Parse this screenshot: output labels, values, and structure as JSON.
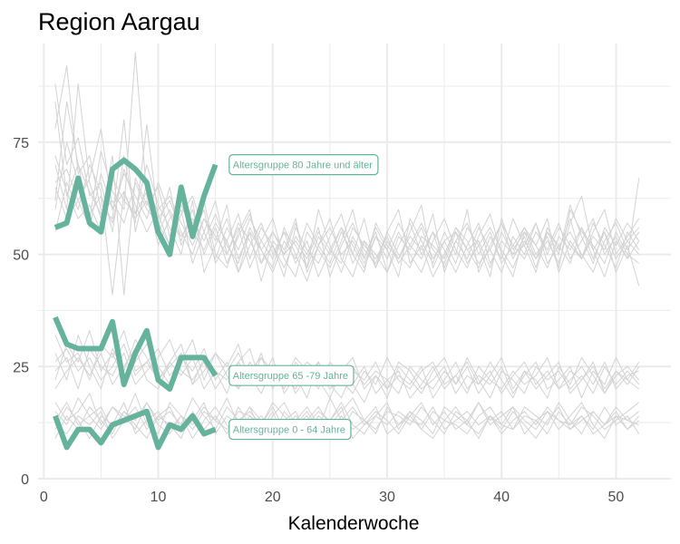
{
  "chart_data": {
    "type": "line",
    "title": "Region Aargau",
    "xlabel": "Kalenderwoche",
    "ylabel": "",
    "xlim": [
      -0.5,
      54.8
    ],
    "ylim": [
      0,
      97
    ],
    "x_ticks": [
      0,
      10,
      20,
      30,
      40,
      50
    ],
    "y_ticks": [
      0,
      25,
      50,
      75
    ],
    "grid": true,
    "colors": {
      "highlight": "#66b39d",
      "background_lines": "#d3d3d3",
      "grid": "#ebebeb"
    },
    "highlighted_series": [
      {
        "name": "Altersgruppe 80 Jahre und älter",
        "x": [
          1,
          2,
          3,
          4,
          5,
          6,
          7,
          8,
          9,
          10,
          11,
          12,
          13,
          14,
          15
        ],
        "values": [
          56,
          57,
          67,
          57,
          55,
          69,
          71,
          69,
          66,
          55,
          50,
          65,
          54,
          63,
          70
        ]
      },
      {
        "name": "Altersgruppe 65 -79 Jahre",
        "x": [
          1,
          2,
          3,
          4,
          5,
          6,
          7,
          8,
          9,
          10,
          11,
          12,
          13,
          14,
          15
        ],
        "values": [
          36,
          30,
          29,
          29,
          29,
          35,
          21,
          28,
          33,
          22,
          20,
          27,
          27,
          27,
          23
        ]
      },
      {
        "name": "Altersgruppe 0 - 64 Jahre",
        "x": [
          1,
          2,
          3,
          4,
          5,
          6,
          7,
          8,
          9,
          10,
          11,
          12,
          13,
          14,
          15
        ],
        "values": [
          14,
          7,
          11,
          11,
          8,
          12,
          13,
          14,
          15,
          7,
          12,
          11,
          14,
          10,
          11
        ]
      }
    ],
    "background_series": [
      {
        "x_start": 1,
        "values": [
          78,
          92,
          68,
          72,
          60,
          58,
          80,
          55,
          66,
          59,
          52,
          63,
          54,
          60,
          48,
          53,
          46,
          55,
          51,
          47,
          56,
          50,
          44,
          52,
          58,
          49,
          45,
          53,
          47,
          55,
          60,
          48,
          52,
          45,
          50,
          56,
          51,
          47,
          54,
          49,
          58,
          52,
          46,
          55,
          50,
          61,
          54,
          48,
          56,
          52,
          57,
          53
        ]
      },
      {
        "x_start": 1,
        "values": [
          88,
          70,
          76,
          63,
          66,
          55,
          72,
          59,
          70,
          61,
          56,
          50,
          62,
          46,
          52,
          58,
          49,
          55,
          44,
          53,
          50,
          57,
          47,
          60,
          52,
          46,
          54,
          49,
          56,
          51,
          45,
          58,
          53,
          48,
          55,
          50,
          60,
          46,
          52,
          57,
          49,
          54,
          47,
          56,
          51,
          58,
          49,
          55,
          60,
          50,
          54,
          58
        ]
      },
      {
        "x_start": 1,
        "values": [
          62,
          84,
          70,
          58,
          73,
          64,
          60,
          95,
          63,
          56,
          65,
          52,
          57,
          62,
          50,
          47,
          55,
          60,
          48,
          52,
          45,
          56,
          51,
          48,
          54,
          59,
          50,
          46,
          57,
          52,
          49,
          55,
          61,
          47,
          53,
          48,
          56,
          52,
          45,
          58,
          51,
          55,
          49,
          53,
          48,
          57,
          63,
          51,
          55,
          49,
          53,
          50
        ]
      },
      {
        "x_start": 1,
        "values": [
          70,
          60,
          88,
          66,
          58,
          72,
          41,
          67,
          61,
          65,
          54,
          60,
          48,
          55,
          62,
          50,
          56,
          47,
          53,
          58,
          49,
          45,
          55,
          51,
          47,
          53,
          60,
          49,
          55,
          46,
          52,
          57,
          50,
          55,
          47,
          53,
          49,
          56,
          51,
          46,
          54,
          50,
          57,
          48,
          52,
          55,
          50,
          46,
          53,
          57,
          51,
          55
        ]
      },
      {
        "x_start": 1,
        "values": [
          55,
          66,
          60,
          70,
          64,
          41,
          64,
          57,
          79,
          58,
          62,
          55,
          50,
          58,
          53,
          61,
          46,
          52,
          57,
          50,
          55,
          48,
          53,
          45,
          51,
          56,
          52,
          47,
          54,
          49,
          55,
          50,
          46,
          53,
          58,
          51,
          47,
          54,
          59,
          50,
          45,
          55,
          52,
          58,
          46,
          53,
          49,
          57,
          52,
          47,
          55,
          51
        ]
      },
      {
        "x_start": 1,
        "values": [
          65,
          58,
          62,
          67,
          78,
          60,
          68,
          63,
          58,
          66,
          59,
          53,
          60,
          50,
          56,
          48,
          54,
          59,
          51,
          46,
          53,
          49,
          57,
          52,
          48,
          55,
          50,
          58,
          47,
          53,
          49,
          54,
          51,
          59,
          46,
          53,
          57,
          50,
          55,
          48,
          52,
          56,
          50,
          54,
          47,
          60,
          55,
          52,
          48,
          55,
          50,
          48
        ]
      },
      {
        "x_start": 1,
        "values": [
          72,
          64,
          58,
          61,
          55,
          67,
          62,
          59,
          64,
          52,
          58,
          61,
          55,
          51,
          57,
          53,
          59,
          49,
          56,
          52,
          47,
          54,
          50,
          56,
          45,
          52,
          57,
          51,
          48,
          55,
          50,
          47,
          54,
          52,
          49,
          56,
          53,
          48,
          51,
          57,
          52,
          49,
          55,
          51,
          57,
          49,
          53,
          58,
          50,
          54,
          49,
          53
        ]
      },
      {
        "x_start": 1,
        "values": [
          60,
          75,
          66,
          59,
          63,
          57,
          69,
          61,
          55,
          60,
          63,
          57,
          52,
          58,
          54,
          50,
          57,
          53,
          48,
          55,
          51,
          58,
          46,
          52,
          56,
          50,
          53,
          48,
          54,
          51,
          57,
          52,
          49,
          55,
          51,
          46,
          52,
          57,
          48,
          53,
          50,
          56,
          52,
          47,
          54,
          51,
          56,
          49,
          55,
          46,
          52,
          43
        ]
      },
      {
        "x_start": 1,
        "values": [
          84,
          63,
          70,
          64,
          59,
          62,
          57,
          66,
          60,
          57,
          52,
          59,
          63,
          55,
          49,
          56,
          51,
          58,
          53,
          49,
          55,
          52,
          47,
          54,
          50,
          56,
          48,
          53,
          50,
          46,
          54,
          51,
          56,
          49,
          53,
          55,
          48,
          52,
          56,
          51,
          47,
          53,
          49,
          55,
          52,
          48,
          56,
          51,
          45,
          53,
          49,
          67
        ]
      },
      {
        "x_start": 1,
        "values": [
          66,
          69,
          62,
          56,
          68,
          60,
          64,
          58,
          62,
          55,
          60,
          54,
          58,
          53,
          59,
          52,
          48,
          56,
          51,
          55,
          50,
          53,
          49,
          55,
          51,
          48,
          56,
          52,
          49,
          54,
          48,
          52,
          57,
          51,
          48,
          55,
          51,
          53,
          47,
          55,
          50,
          52,
          57,
          50,
          56,
          52,
          49,
          54,
          51,
          58,
          53,
          56
        ]
      },
      {
        "x_start": 1,
        "values": [
          28,
          22,
          32,
          25,
          20,
          29,
          24,
          31,
          27,
          22,
          26,
          30,
          21,
          27,
          24,
          19,
          26,
          22,
          28,
          20,
          25,
          23,
          18,
          26,
          21,
          24,
          27,
          20,
          23,
          18,
          25,
          22,
          19,
          24,
          27,
          21,
          25,
          19,
          23,
          27,
          20,
          24,
          22,
          18,
          25,
          21,
          27,
          23,
          19,
          24,
          21,
          25
        ]
      },
      {
        "x_start": 1,
        "values": [
          22,
          30,
          26,
          33,
          24,
          28,
          22,
          26,
          30,
          25,
          21,
          27,
          24,
          29,
          22,
          26,
          20,
          24,
          27,
          22,
          25,
          19,
          23,
          26,
          21,
          18,
          24,
          22,
          26,
          20,
          23,
          21,
          25,
          18,
          22,
          26,
          20,
          23,
          21,
          25,
          19,
          23,
          26,
          20,
          22,
          25,
          18,
          24,
          21,
          27,
          22,
          26
        ]
      },
      {
        "x_start": 1,
        "values": [
          32,
          26,
          28,
          22,
          30,
          27,
          33,
          24,
          26,
          29,
          23,
          26,
          31,
          22,
          28,
          25,
          30,
          21,
          27,
          24,
          20,
          26,
          23,
          21,
          25,
          22,
          19,
          24,
          21,
          27,
          22,
          20,
          24,
          26,
          21,
          23,
          19,
          25,
          22,
          20,
          24,
          21,
          23,
          27,
          20,
          24,
          22,
          26,
          19,
          23,
          25,
          22
        ]
      },
      {
        "x_start": 1,
        "values": [
          24,
          27,
          20,
          29,
          25,
          23,
          28,
          21,
          24,
          27,
          31,
          24,
          22,
          26,
          20,
          24,
          28,
          23,
          19,
          25,
          22,
          27,
          24,
          20,
          26,
          23,
          21,
          17,
          23,
          20,
          26,
          24,
          20,
          22,
          25,
          19,
          23,
          21,
          26,
          22,
          18,
          24,
          20,
          23,
          26,
          19,
          22,
          25,
          20,
          24,
          22,
          20
        ]
      },
      {
        "x_start": 1,
        "values": [
          20,
          24,
          27,
          23,
          28,
          21,
          25,
          29,
          22,
          20,
          26,
          23,
          27,
          20,
          24,
          22,
          26,
          29,
          21,
          25,
          23,
          20,
          25,
          22,
          18,
          24,
          21,
          25,
          19,
          22,
          24,
          18,
          21,
          25,
          20,
          23,
          26,
          21,
          24,
          19,
          23,
          26,
          21,
          24,
          20,
          22,
          25,
          21,
          26,
          20,
          23,
          24
        ]
      },
      {
        "x_start": 1,
        "values": [
          26,
          29,
          24,
          27,
          22,
          25,
          30,
          23,
          26,
          22,
          25,
          28,
          21,
          24,
          28,
          23,
          20,
          26,
          22,
          27,
          19,
          23,
          26,
          24,
          20,
          22,
          25,
          21,
          24,
          22,
          19,
          25,
          22,
          20,
          24,
          21,
          27,
          22,
          18,
          24,
          22,
          19,
          25,
          22,
          24,
          20,
          23,
          19,
          25,
          21,
          24,
          21
        ]
      },
      {
        "x_start": 1,
        "values": [
          11,
          16,
          13,
          9,
          14,
          12,
          17,
          10,
          13,
          15,
          11,
          14,
          9,
          13,
          16,
          12,
          10,
          14,
          11,
          15,
          9,
          13,
          16,
          12,
          10,
          14,
          11,
          13,
          16,
          10,
          12,
          15,
          11,
          9,
          13,
          16,
          12,
          10,
          14,
          11,
          15,
          12,
          9,
          13,
          16,
          11,
          14,
          10,
          12,
          15,
          11,
          14
        ]
      },
      {
        "x_start": 1,
        "values": [
          15,
          12,
          18,
          14,
          11,
          16,
          13,
          19,
          12,
          10,
          17,
          14,
          11,
          15,
          13,
          18,
          12,
          16,
          10,
          14,
          17,
          12,
          15,
          11,
          18,
          13,
          16,
          12,
          14,
          17,
          11,
          15,
          13,
          10,
          16,
          14,
          12,
          17,
          13,
          15,
          11,
          16,
          14,
          12,
          17,
          13,
          10,
          15,
          12,
          16,
          13,
          12
        ]
      },
      {
        "x_start": 1,
        "values": [
          9,
          14,
          11,
          16,
          13,
          10,
          15,
          12,
          9,
          14,
          16,
          11,
          13,
          17,
          10,
          14,
          12,
          16,
          13,
          9,
          15,
          12,
          14,
          10,
          13,
          16,
          9,
          12,
          15,
          13,
          10,
          14,
          17,
          12,
          15,
          11,
          13,
          9,
          14,
          12,
          16,
          10,
          13,
          15,
          11,
          14,
          17,
          12,
          9,
          14,
          11,
          13
        ]
      },
      {
        "x_start": 1,
        "values": [
          17,
          13,
          15,
          19,
          12,
          16,
          14,
          11,
          17,
          13,
          15,
          12,
          18,
          14,
          11,
          16,
          13,
          15,
          12,
          17,
          14,
          11,
          13,
          16,
          12,
          15,
          18,
          13,
          11,
          15,
          14,
          12,
          16,
          13,
          10,
          15,
          13,
          17,
          12,
          14,
          16,
          13,
          11,
          15,
          13,
          12,
          16,
          14,
          11,
          13,
          15,
          17
        ]
      },
      {
        "x_start": 1,
        "values": [
          12,
          10,
          14,
          12,
          15,
          9,
          13,
          16,
          11,
          14,
          12,
          9,
          15,
          11,
          14,
          10,
          16,
          12,
          14,
          11,
          13,
          15,
          10,
          14,
          12,
          11,
          15,
          13,
          10,
          16,
          12,
          14,
          11,
          15,
          13,
          12,
          10,
          14,
          16,
          12,
          11,
          14,
          13,
          10,
          15,
          12,
          14,
          11,
          16,
          12,
          14,
          10
        ]
      },
      {
        "x_start": 1,
        "values": [
          13,
          17,
          12,
          14,
          16,
          11,
          15,
          13,
          17,
          12,
          10,
          14,
          12,
          16,
          13,
          11,
          15,
          14,
          12,
          16,
          11,
          14,
          12,
          15,
          13,
          17,
          12,
          10,
          14,
          12,
          15,
          13,
          12,
          16,
          11,
          13,
          15,
          12,
          14,
          10,
          13,
          15,
          12,
          16,
          13,
          11,
          13,
          15,
          12,
          14,
          13,
          15
        ]
      }
    ],
    "annotations": [
      {
        "text": "Altersgruppe 80 Jahre und älter",
        "x": 16.2,
        "y": 70
      },
      {
        "text": "Altersgruppe 65 -79 Jahre",
        "x": 16.2,
        "y": 23
      },
      {
        "text": "Altersgruppe 0 - 64 Jahre",
        "x": 16.2,
        "y": 11
      }
    ]
  }
}
